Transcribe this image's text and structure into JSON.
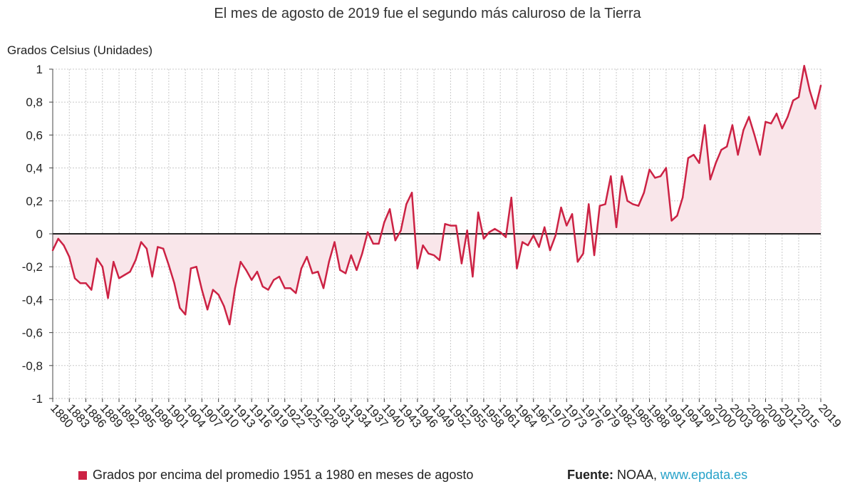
{
  "chart_data": {
    "type": "line",
    "title": "El mes de agosto de 2019 fue el segundo más caluroso de la Tierra",
    "ylabel": "Grados Celsius (Unidades)",
    "xlabel": "",
    "ylim": [
      -1,
      1
    ],
    "yticks": [
      1,
      0.8,
      0.6,
      0.4,
      0.2,
      0,
      -0.2,
      -0.4,
      -0.6,
      -0.8,
      -1
    ],
    "ytick_labels": [
      "1",
      "0,8",
      "0,6",
      "0,4",
      "0,2",
      "0",
      "-0,2",
      "-0,4",
      "-0,6",
      "-0,8",
      "-1"
    ],
    "xtick_labels": [
      "1880",
      "1883",
      "1886",
      "1889",
      "1892",
      "1895",
      "1898",
      "1901",
      "1904",
      "1907",
      "1910",
      "1913",
      "1916",
      "1919",
      "1922",
      "1925",
      "1928",
      "1931",
      "1934",
      "1937",
      "1940",
      "1943",
      "1946",
      "1949",
      "1952",
      "1955",
      "1958",
      "1961",
      "1964",
      "1967",
      "1970",
      "1973",
      "1976",
      "1979",
      "1982",
      "1985",
      "1988",
      "1991",
      "1994",
      "1997",
      "2000",
      "2003",
      "2006",
      "2009",
      "2012",
      "2015",
      "2019"
    ],
    "x_start": 1880,
    "x_end": 2019,
    "series": [
      {
        "name": "Grados por encima del promedio 1951 a 1980 en meses de agosto",
        "color": "#cc2244",
        "fill": "#f9e6ea",
        "values": [
          -0.1,
          -0.03,
          -0.07,
          -0.14,
          -0.27,
          -0.3,
          -0.3,
          -0.34,
          -0.15,
          -0.2,
          -0.39,
          -0.17,
          -0.27,
          -0.25,
          -0.23,
          -0.16,
          -0.05,
          -0.09,
          -0.26,
          -0.08,
          -0.09,
          -0.19,
          -0.3,
          -0.45,
          -0.49,
          -0.21,
          -0.2,
          -0.34,
          -0.46,
          -0.34,
          -0.37,
          -0.44,
          -0.55,
          -0.33,
          -0.17,
          -0.22,
          -0.28,
          -0.23,
          -0.32,
          -0.34,
          -0.28,
          -0.26,
          -0.33,
          -0.33,
          -0.36,
          -0.21,
          -0.14,
          -0.24,
          -0.23,
          -0.33,
          -0.17,
          -0.05,
          -0.22,
          -0.24,
          -0.13,
          -0.22,
          -0.12,
          0.01,
          -0.06,
          -0.06,
          0.07,
          0.15,
          -0.04,
          0.02,
          0.18,
          0.25,
          -0.21,
          -0.07,
          -0.12,
          -0.13,
          -0.16,
          0.06,
          0.05,
          0.05,
          -0.18,
          0.02,
          -0.26,
          0.13,
          -0.03,
          0.01,
          0.03,
          0.01,
          -0.02,
          0.22,
          -0.21,
          -0.05,
          -0.07,
          -0.01,
          -0.08,
          0.04,
          -0.1,
          -0.01,
          0.16,
          0.05,
          0.12,
          -0.17,
          -0.12,
          0.18,
          -0.13,
          0.17,
          0.18,
          0.35,
          0.04,
          0.35,
          0.2,
          0.18,
          0.17,
          0.25,
          0.39,
          0.34,
          0.35,
          0.4,
          0.08,
          0.11,
          0.22,
          0.46,
          0.48,
          0.43,
          0.66,
          0.33,
          0.43,
          0.51,
          0.53,
          0.66,
          0.48,
          0.63,
          0.71,
          0.6,
          0.48,
          0.68,
          0.67,
          0.73,
          0.64,
          0.71,
          0.81,
          0.83,
          1.02,
          0.87,
          0.76,
          0.9
        ]
      }
    ]
  },
  "legend": {
    "label": "Grados por encima del promedio 1951 a 1980 en meses de agosto"
  },
  "source": {
    "label": "Fuente:",
    "text": "NOAA,",
    "link": "www.epdata.es"
  }
}
